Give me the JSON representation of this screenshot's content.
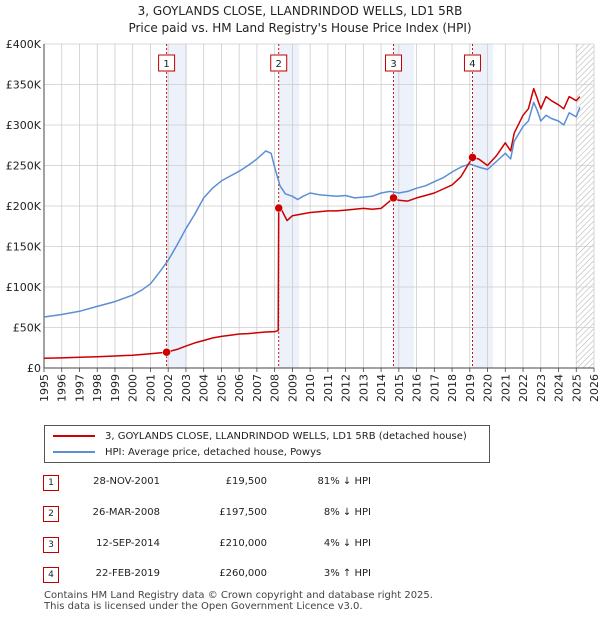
{
  "chart_data": {
    "type": "line",
    "title": "3, GOYLANDS CLOSE, LLANDRINDOD WELLS, LD1 5RB",
    "subtitle": "Price paid vs. HM Land Registry's House Price Index (HPI)",
    "xlabel": "",
    "ylabel": "",
    "xlim": [
      1995,
      2026
    ],
    "ylim": [
      0,
      400000
    ],
    "grid": true,
    "x_ticks": [
      "1995",
      "1996",
      "1997",
      "1998",
      "1999",
      "2000",
      "2001",
      "2002",
      "2003",
      "2004",
      "2005",
      "2006",
      "2007",
      "2008",
      "2009",
      "2010",
      "2011",
      "2012",
      "2013",
      "2014",
      "2015",
      "2016",
      "2017",
      "2018",
      "2019",
      "2020",
      "2021",
      "2022",
      "2023",
      "2024",
      "2025",
      "2026"
    ],
    "y_ticks": [
      {
        "value": 0,
        "label": "£0"
      },
      {
        "value": 50000,
        "label": "£50K"
      },
      {
        "value": 100000,
        "label": "£100K"
      },
      {
        "value": 150000,
        "label": "£150K"
      },
      {
        "value": 200000,
        "label": "£200K"
      },
      {
        "value": 250000,
        "label": "£250K"
      },
      {
        "value": 300000,
        "label": "£300K"
      },
      {
        "value": 350000,
        "label": "£350K"
      },
      {
        "value": 400000,
        "label": "£400K"
      }
    ],
    "legend_position": "below",
    "series": [
      {
        "name": "3, GOYLANDS CLOSE, LLANDRINDOD WELLS, LD1 5RB (detached house)",
        "color": "#cc0000",
        "x": [
          1995.0,
          1996.0,
          1997.0,
          1998.0,
          1999.0,
          2000.0,
          2001.0,
          2001.91,
          2002.5,
          2003.0,
          2003.5,
          2004.0,
          2004.5,
          2005.0,
          2005.5,
          2006.0,
          2006.5,
          2007.0,
          2007.5,
          2008.0,
          2008.2,
          2008.23,
          2008.4,
          2008.7,
          2009.0,
          2009.5,
          2010.0,
          2010.5,
          2011.0,
          2011.5,
          2012.0,
          2012.5,
          2013.0,
          2013.5,
          2014.0,
          2014.7,
          2015.0,
          2015.5,
          2016.0,
          2016.5,
          2017.0,
          2017.5,
          2018.0,
          2018.5,
          2019.15,
          2019.5,
          2020.0,
          2020.5,
          2021.0,
          2021.3,
          2021.5,
          2022.0,
          2022.3,
          2022.6,
          2022.8,
          2023.0,
          2023.3,
          2023.6,
          2024.0,
          2024.3,
          2024.6,
          2025.0,
          2025.2
        ],
        "y": [
          12000,
          12500,
          13200,
          14000,
          14800,
          15800,
          17500,
          19500,
          23000,
          27000,
          31000,
          34000,
          37000,
          39000,
          40500,
          42000,
          42500,
          43500,
          44500,
          45000,
          46000,
          197500,
          195000,
          182000,
          188000,
          190000,
          192000,
          193000,
          194000,
          194000,
          195000,
          196000,
          197000,
          196000,
          197000,
          210000,
          207000,
          206000,
          210000,
          213000,
          216000,
          221000,
          226000,
          236000,
          260000,
          258000,
          250000,
          262000,
          278000,
          268000,
          290000,
          312000,
          320000,
          345000,
          333000,
          320000,
          335000,
          330000,
          325000,
          320000,
          335000,
          330000,
          335000
        ]
      },
      {
        "name": "HPI: Average price, detached house, Powys",
        "color": "#5b8fd4",
        "x": [
          1995.0,
          1996.0,
          1997.0,
          1998.0,
          1999.0,
          2000.0,
          2000.5,
          2001.0,
          2001.5,
          2002.0,
          2002.5,
          2003.0,
          2003.5,
          2004.0,
          2004.5,
          2005.0,
          2005.5,
          2006.0,
          2006.5,
          2007.0,
          2007.5,
          2007.8,
          2008.0,
          2008.3,
          2008.6,
          2009.0,
          2009.3,
          2009.6,
          2010.0,
          2010.5,
          2011.0,
          2011.5,
          2012.0,
          2012.5,
          2013.0,
          2013.5,
          2014.0,
          2014.5,
          2015.0,
          2015.5,
          2016.0,
          2016.5,
          2017.0,
          2017.5,
          2018.0,
          2018.5,
          2019.0,
          2019.5,
          2020.0,
          2020.5,
          2021.0,
          2021.3,
          2021.5,
          2022.0,
          2022.3,
          2022.6,
          2022.8,
          2023.0,
          2023.3,
          2023.6,
          2024.0,
          2024.3,
          2024.6,
          2025.0,
          2025.2
        ],
        "y": [
          63000,
          66000,
          70000,
          76000,
          82000,
          90000,
          96000,
          104000,
          118000,
          133000,
          152000,
          172000,
          190000,
          210000,
          222000,
          231000,
          237000,
          243000,
          250000,
          258000,
          268000,
          265000,
          248000,
          225000,
          215000,
          212000,
          208000,
          212000,
          216000,
          214000,
          213000,
          212000,
          213000,
          210000,
          211000,
          212000,
          216000,
          218000,
          216000,
          218000,
          222000,
          225000,
          230000,
          235000,
          242000,
          248000,
          252000,
          248000,
          245000,
          255000,
          265000,
          258000,
          280000,
          298000,
          305000,
          328000,
          318000,
          305000,
          312000,
          308000,
          305000,
          300000,
          315000,
          310000,
          322000
        ]
      }
    ],
    "vlines": [
      {
        "x": 2001.91,
        "label": "1"
      },
      {
        "x": 2008.23,
        "label": "2"
      },
      {
        "x": 2014.7,
        "label": "3"
      },
      {
        "x": 2019.15,
        "label": "4"
      }
    ],
    "sale_points": [
      {
        "x": 2001.91,
        "y": 19500
      },
      {
        "x": 2008.23,
        "y": 197500
      },
      {
        "x": 2014.7,
        "y": 210000
      },
      {
        "x": 2019.15,
        "y": 260000
      }
    ],
    "projection_from": 2025.0
  },
  "legend": {
    "series1_label": "3, GOYLANDS CLOSE, LLANDRINDOD WELLS, LD1 5RB (detached house)",
    "series2_label": "HPI: Average price, detached house, Powys"
  },
  "transactions": [
    {
      "num": "1",
      "date": "28-NOV-2001",
      "price": "£19,500",
      "hpi": "81% ↓ HPI"
    },
    {
      "num": "2",
      "date": "26-MAR-2008",
      "price": "£197,500",
      "hpi": "8% ↓ HPI"
    },
    {
      "num": "3",
      "date": "12-SEP-2014",
      "price": "£210,000",
      "hpi": "4% ↓ HPI"
    },
    {
      "num": "4",
      "date": "22-FEB-2019",
      "price": "£260,000",
      "hpi": "3% ↑ HPI"
    }
  ],
  "footer": {
    "line1": "Contains HM Land Registry data © Crown copyright and database right 2025.",
    "line2": "This data is licensed under the Open Government Licence v3.0."
  },
  "colors": {
    "price_line": "#cc0000",
    "hpi_line": "#5b8fd4",
    "sale_band": "#dde6f5",
    "grid": "#cccccc",
    "marker_border": "#c00000"
  }
}
